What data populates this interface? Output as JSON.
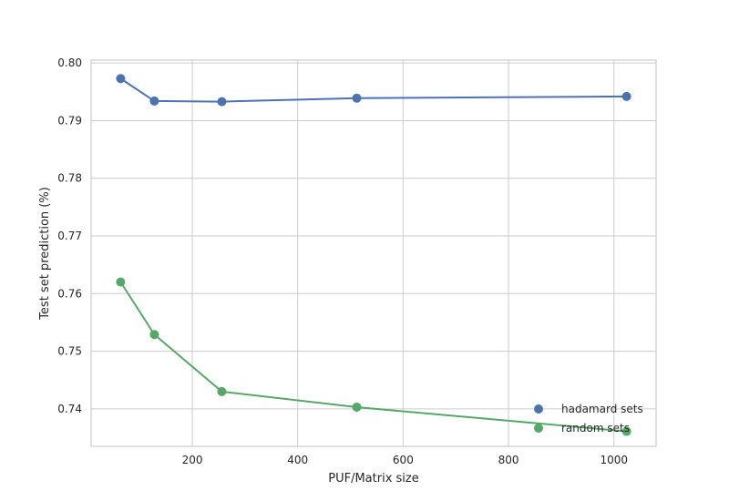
{
  "chart_data": {
    "type": "line",
    "xlabel": "PUF/Matrix size",
    "ylabel": "Test set prediction (%)",
    "xlim": [
      8,
      1080
    ],
    "ylim": [
      0.7335,
      0.8005
    ],
    "x_ticks": [
      200,
      400,
      600,
      800,
      1000
    ],
    "x_tick_labels": [
      "200",
      "400",
      "600",
      "800",
      "1000"
    ],
    "y_ticks": [
      0.74,
      0.75,
      0.76,
      0.77,
      0.78,
      0.79,
      0.8
    ],
    "y_tick_labels": [
      "0.74",
      "0.75",
      "0.76",
      "0.77",
      "0.78",
      "0.79",
      "0.80"
    ],
    "grid": true,
    "legend_position": "bottom-right",
    "x": [
      64,
      128,
      256,
      512,
      1024
    ],
    "series": [
      {
        "name": "hadamard sets",
        "color": "#4c72b0",
        "values": [
          0.7973,
          0.7934,
          0.7933,
          0.7939,
          0.7942
        ]
      },
      {
        "name": "random sets",
        "color": "#55a868",
        "values": [
          0.762,
          0.7529,
          0.743,
          0.7403,
          0.7361
        ]
      }
    ]
  }
}
